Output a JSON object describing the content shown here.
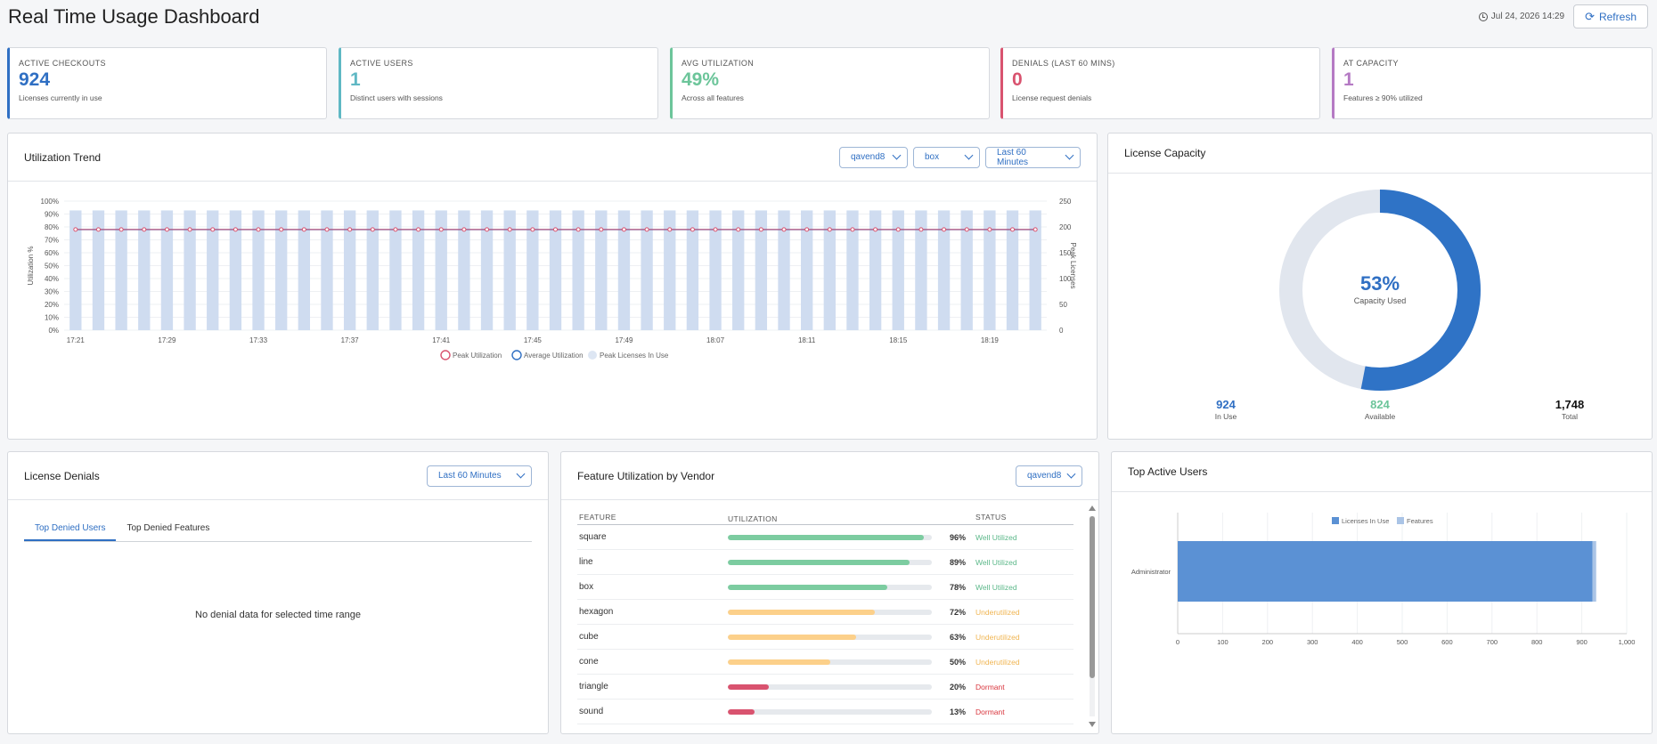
{
  "page": {
    "title": "Real Time Usage Dashboard",
    "timestamp": "Jul 24, 2026 14:29",
    "refresh_label": "Refresh"
  },
  "kpis": [
    {
      "label": "ACTIVE CHECKOUTS",
      "value": "924",
      "sub": "Licenses currently in use",
      "color": "#2f6fc3"
    },
    {
      "label": "ACTIVE USERS",
      "value": "1",
      "sub": "Distinct users with sessions",
      "color": "#5fb8c4"
    },
    {
      "label": "AVG UTILIZATION",
      "value": "49%",
      "sub": "Across all features",
      "color": "#6cc59a"
    },
    {
      "label": "DENIALS (LAST 60 MINS)",
      "value": "0",
      "sub": "License request denials",
      "color": "#d9536f"
    },
    {
      "label": "AT CAPACITY",
      "value": "1",
      "sub": "Features ≥ 90% utilized",
      "color": "#b57ac4"
    }
  ],
  "trend": {
    "title": "Utilization Trend",
    "selects": [
      "qavend8",
      "box",
      "Last 60 Minutes"
    ]
  },
  "capacity": {
    "title": "License Capacity",
    "percent_label": "53%",
    "percent": 0.53,
    "center_label": "Capacity Used",
    "in_use": "924",
    "in_use_label": "In Use",
    "available": "824",
    "available_label": "Available",
    "total": "1,748",
    "total_label": "Total"
  },
  "denials": {
    "title": "License Denials",
    "range": "Last 60 Minutes",
    "tabs": [
      "Top Denied Users",
      "Top Denied Features"
    ],
    "empty": "No denial data for selected time range"
  },
  "features": {
    "title": "Feature Utilization by Vendor",
    "vendor": "qavend8",
    "headers": {
      "feature": "FEATURE",
      "utilization": "UTILIZATION",
      "status": "STATUS"
    },
    "rows": [
      {
        "name": "square",
        "pct": 96,
        "pct_label": "96%",
        "status": "Well Utilized",
        "color": "#7ccca0",
        "status_color": "#5cb88a"
      },
      {
        "name": "line",
        "pct": 89,
        "pct_label": "89%",
        "status": "Well Utilized",
        "color": "#7ccca0",
        "status_color": "#5cb88a"
      },
      {
        "name": "box",
        "pct": 78,
        "pct_label": "78%",
        "status": "Well Utilized",
        "color": "#7ccca0",
        "status_color": "#5cb88a"
      },
      {
        "name": "hexagon",
        "pct": 72,
        "pct_label": "72%",
        "status": "Underutilized",
        "color": "#fcd08a",
        "status_color": "#f0b552"
      },
      {
        "name": "cube",
        "pct": 63,
        "pct_label": "63%",
        "status": "Underutilized",
        "color": "#fcd08a",
        "status_color": "#f0b552"
      },
      {
        "name": "cone",
        "pct": 50,
        "pct_label": "50%",
        "status": "Underutilized",
        "color": "#fcd08a",
        "status_color": "#f0b552"
      },
      {
        "name": "triangle",
        "pct": 20,
        "pct_label": "20%",
        "status": "Dormant",
        "color": "#d9536f",
        "status_color": "#d9363e"
      },
      {
        "name": "sound",
        "pct": 13,
        "pct_label": "13%",
        "status": "Dormant",
        "color": "#d9536f",
        "status_color": "#d9363e"
      }
    ]
  },
  "top_users": {
    "title": "Top Active Users",
    "legend": [
      "Licenses In Use",
      "Features"
    ],
    "user": "Administrator",
    "licenses": 924,
    "features": 8,
    "x_ticks": [
      "0",
      "100",
      "200",
      "300",
      "400",
      "500",
      "600",
      "700",
      "800",
      "900",
      "1,000"
    ]
  },
  "chart_data": [
    {
      "type": "bar",
      "title": "Utilization Trend",
      "ylabel": "Utilization %",
      "y2label": "Peak Licenses",
      "ylim": [
        0,
        100
      ],
      "y2lim": [
        0,
        250
      ],
      "y_ticks": [
        "0%",
        "10%",
        "20%",
        "30%",
        "40%",
        "50%",
        "60%",
        "70%",
        "80%",
        "90%",
        "100%"
      ],
      "y2_ticks": [
        "0",
        "50",
        "100",
        "150",
        "200",
        "250"
      ],
      "x_tick_labels": [
        "17:21",
        "17:29",
        "17:33",
        "17:37",
        "17:41",
        "17:45",
        "17:49",
        "18:07",
        "18:11",
        "18:15",
        "18:19"
      ],
      "points": 43,
      "legend": [
        "Peak Utilization",
        "Average Utilization",
        "Peak Licenses In Use"
      ],
      "series": [
        {
          "name": "Peak Utilization",
          "constant": 78,
          "color": "#d9536f"
        },
        {
          "name": "Average Utilization",
          "constant": 78,
          "color": "#2f6fc3"
        },
        {
          "name": "Peak Licenses In Use",
          "constant": 232,
          "color": "#c9d7ee"
        }
      ]
    },
    {
      "type": "pie",
      "title": "License Capacity",
      "series": [
        {
          "name": "In Use",
          "value": 924
        },
        {
          "name": "Available",
          "value": 824
        }
      ]
    },
    {
      "type": "bar",
      "title": "Top Active Users",
      "categories": [
        "Administrator"
      ],
      "series": [
        {
          "name": "Licenses In Use",
          "values": [
            924
          ]
        },
        {
          "name": "Features",
          "values": [
            8
          ]
        }
      ],
      "xlim": [
        0,
        1000
      ]
    }
  ]
}
